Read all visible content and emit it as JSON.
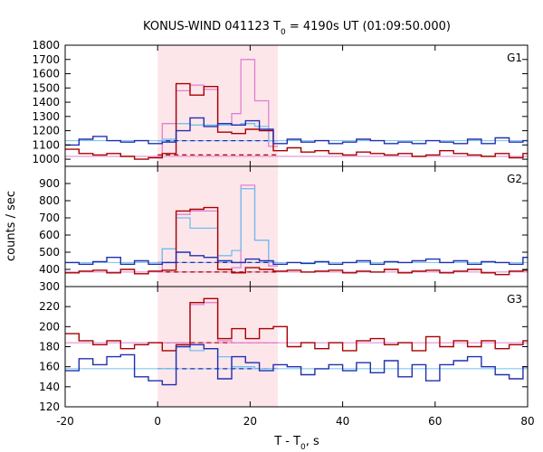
{
  "chart_data": {
    "type": "line",
    "title_main": "KONUS-WIND 041123 T",
    "title_sub": "0",
    "title_rest": " = 4190s UT (01:09:50.000)",
    "xlabel_main": "T - T",
    "xlabel_sub": "0",
    "xlabel_rest": ", s",
    "ylabel": "counts / sec",
    "xlim": [
      -20,
      80
    ],
    "xticks": [
      -20,
      0,
      20,
      40,
      60,
      80
    ],
    "highlight_interval": [
      0,
      26
    ],
    "colors": {
      "red": "#a80000",
      "blue": "#2030b0",
      "pink": "#e080d0",
      "lightblue": "#70c0ee",
      "shade": "#fde6ea"
    },
    "panels": [
      {
        "name": "G1",
        "ylim": [
          950,
          1800
        ],
        "yticks": [
          1000,
          1100,
          1200,
          1300,
          1400,
          1500,
          1600,
          1700,
          1800
        ],
        "bg_red": 1030,
        "bg_blue": 1130,
        "bg_pink_solid": 1020,
        "bg_lightblue_solid": 1130,
        "red_steps": {
          "x": [
            -20,
            -17,
            -14,
            -11,
            -8,
            -5,
            -2,
            1,
            4,
            7,
            10,
            13,
            16,
            19,
            22,
            25,
            28,
            31,
            34,
            37,
            40,
            43,
            46,
            49,
            52,
            55,
            58,
            61,
            64,
            67,
            70,
            73,
            76,
            79,
            80
          ],
          "y": [
            1070,
            1040,
            1030,
            1040,
            1020,
            1000,
            1010,
            1040,
            1530,
            1450,
            1510,
            1190,
            1180,
            1210,
            1200,
            1060,
            1080,
            1050,
            1060,
            1040,
            1030,
            1050,
            1040,
            1030,
            1040,
            1020,
            1030,
            1060,
            1040,
            1030,
            1020,
            1040,
            1010,
            1040,
            1040
          ]
        },
        "blue_steps": {
          "x": [
            -20,
            -17,
            -14,
            -11,
            -8,
            -5,
            -2,
            1,
            4,
            7,
            10,
            13,
            16,
            19,
            22,
            25,
            28,
            31,
            34,
            37,
            40,
            43,
            46,
            49,
            52,
            55,
            58,
            61,
            64,
            67,
            70,
            73,
            76,
            79,
            80
          ],
          "y": [
            1100,
            1140,
            1160,
            1130,
            1120,
            1130,
            1110,
            1120,
            1200,
            1290,
            1230,
            1250,
            1240,
            1270,
            1210,
            1110,
            1140,
            1120,
            1130,
            1110,
            1120,
            1140,
            1130,
            1110,
            1120,
            1110,
            1130,
            1120,
            1110,
            1140,
            1110,
            1150,
            1120,
            1130,
            1130
          ]
        },
        "pink_steps": {
          "x": [
            0,
            1,
            4,
            7,
            10,
            13,
            16,
            18,
            21,
            24,
            26
          ],
          "y": [
            1020,
            1250,
            1480,
            1520,
            1490,
            1250,
            1320,
            1700,
            1410,
            1090,
            1020
          ]
        },
        "lightblue_steps": {
          "x": [
            0,
            1,
            4,
            7,
            10,
            13,
            16,
            18,
            21,
            24,
            26
          ],
          "y": [
            1130,
            1140,
            1250,
            1240,
            1240,
            1240,
            1240,
            1250,
            1230,
            1130,
            1130
          ]
        }
      },
      {
        "name": "G2",
        "ylim": [
          300,
          1000
        ],
        "yticks": [
          300,
          400,
          500,
          600,
          700,
          800,
          900
        ],
        "bg_red": 385,
        "bg_blue": 440,
        "bg_pink_solid": 385,
        "bg_lightblue_solid": 440,
        "red_steps": {
          "x": [
            -20,
            -17,
            -14,
            -11,
            -8,
            -5,
            -2,
            1,
            4,
            7,
            10,
            13,
            16,
            19,
            22,
            25,
            28,
            31,
            34,
            37,
            40,
            43,
            46,
            49,
            52,
            55,
            58,
            61,
            64,
            67,
            70,
            73,
            76,
            79,
            80
          ],
          "y": [
            380,
            390,
            395,
            380,
            400,
            375,
            390,
            395,
            740,
            750,
            760,
            400,
            380,
            410,
            400,
            390,
            395,
            385,
            390,
            395,
            380,
            390,
            385,
            400,
            380,
            390,
            395,
            380,
            390,
            400,
            380,
            370,
            390,
            395,
            395
          ]
        },
        "blue_steps": {
          "x": [
            -20,
            -17,
            -14,
            -11,
            -8,
            -5,
            -2,
            1,
            4,
            7,
            10,
            13,
            16,
            19,
            22,
            25,
            28,
            31,
            34,
            37,
            40,
            43,
            46,
            49,
            52,
            55,
            58,
            61,
            64,
            67,
            70,
            73,
            76,
            79,
            80
          ],
          "y": [
            440,
            430,
            445,
            470,
            430,
            450,
            430,
            440,
            500,
            480,
            470,
            450,
            440,
            460,
            450,
            430,
            440,
            435,
            445,
            430,
            440,
            450,
            430,
            445,
            440,
            450,
            460,
            440,
            450,
            430,
            445,
            440,
            430,
            470,
            470
          ]
        },
        "pink_steps": {
          "x": [
            0,
            1,
            4,
            7,
            10,
            13,
            16,
            18,
            21,
            24,
            26
          ],
          "y": [
            385,
            520,
            720,
            740,
            740,
            400,
            410,
            890,
            570,
            420,
            385
          ]
        },
        "lightblue_steps": {
          "x": [
            0,
            1,
            4,
            7,
            10,
            13,
            16,
            18,
            21,
            24,
            26
          ],
          "y": [
            440,
            520,
            700,
            640,
            640,
            480,
            510,
            870,
            570,
            440,
            440
          ]
        }
      },
      {
        "name": "G3",
        "ylim": [
          120,
          240
        ],
        "yticks": [
          120,
          140,
          160,
          180,
          200,
          220
        ],
        "bg_red": 184,
        "bg_blue": 158,
        "bg_pink_solid": 184,
        "bg_lightblue_solid": 158,
        "red_steps": {
          "x": [
            -20,
            -17,
            -14,
            -11,
            -8,
            -5,
            -2,
            1,
            4,
            7,
            10,
            13,
            16,
            19,
            22,
            25,
            28,
            31,
            34,
            37,
            40,
            43,
            46,
            49,
            52,
            55,
            58,
            61,
            64,
            67,
            70,
            73,
            76,
            79,
            80
          ],
          "y": [
            193,
            186,
            182,
            186,
            178,
            182,
            184,
            176,
            182,
            224,
            228,
            188,
            198,
            188,
            198,
            200,
            180,
            184,
            178,
            184,
            176,
            186,
            188,
            182,
            184,
            176,
            190,
            180,
            186,
            180,
            186,
            178,
            182,
            186,
            186
          ]
        },
        "blue_steps": {
          "x": [
            -20,
            -17,
            -14,
            -11,
            -8,
            -5,
            -2,
            1,
            4,
            7,
            10,
            13,
            16,
            19,
            22,
            25,
            28,
            31,
            34,
            37,
            40,
            43,
            46,
            49,
            52,
            55,
            58,
            61,
            64,
            67,
            70,
            73,
            76,
            79,
            80
          ],
          "y": [
            156,
            168,
            162,
            170,
            172,
            150,
            146,
            142,
            180,
            182,
            178,
            148,
            170,
            164,
            156,
            162,
            160,
            152,
            158,
            162,
            156,
            164,
            154,
            166,
            150,
            162,
            146,
            162,
            166,
            170,
            160,
            152,
            148,
            160,
            160
          ]
        },
        "pink_steps": {
          "x": [
            0,
            1,
            4,
            7,
            10,
            13,
            16,
            18,
            21,
            24,
            26
          ],
          "y": [
            184,
            184,
            184,
            222,
            224,
            186,
            184,
            184,
            184,
            184,
            184
          ]
        },
        "lightblue_steps": {
          "x": [
            0,
            1,
            4,
            7,
            10,
            13,
            16,
            18,
            21,
            24,
            26
          ],
          "y": [
            158,
            158,
            180,
            176,
            178,
            170,
            160,
            160,
            158,
            158,
            158
          ]
        }
      }
    ]
  }
}
